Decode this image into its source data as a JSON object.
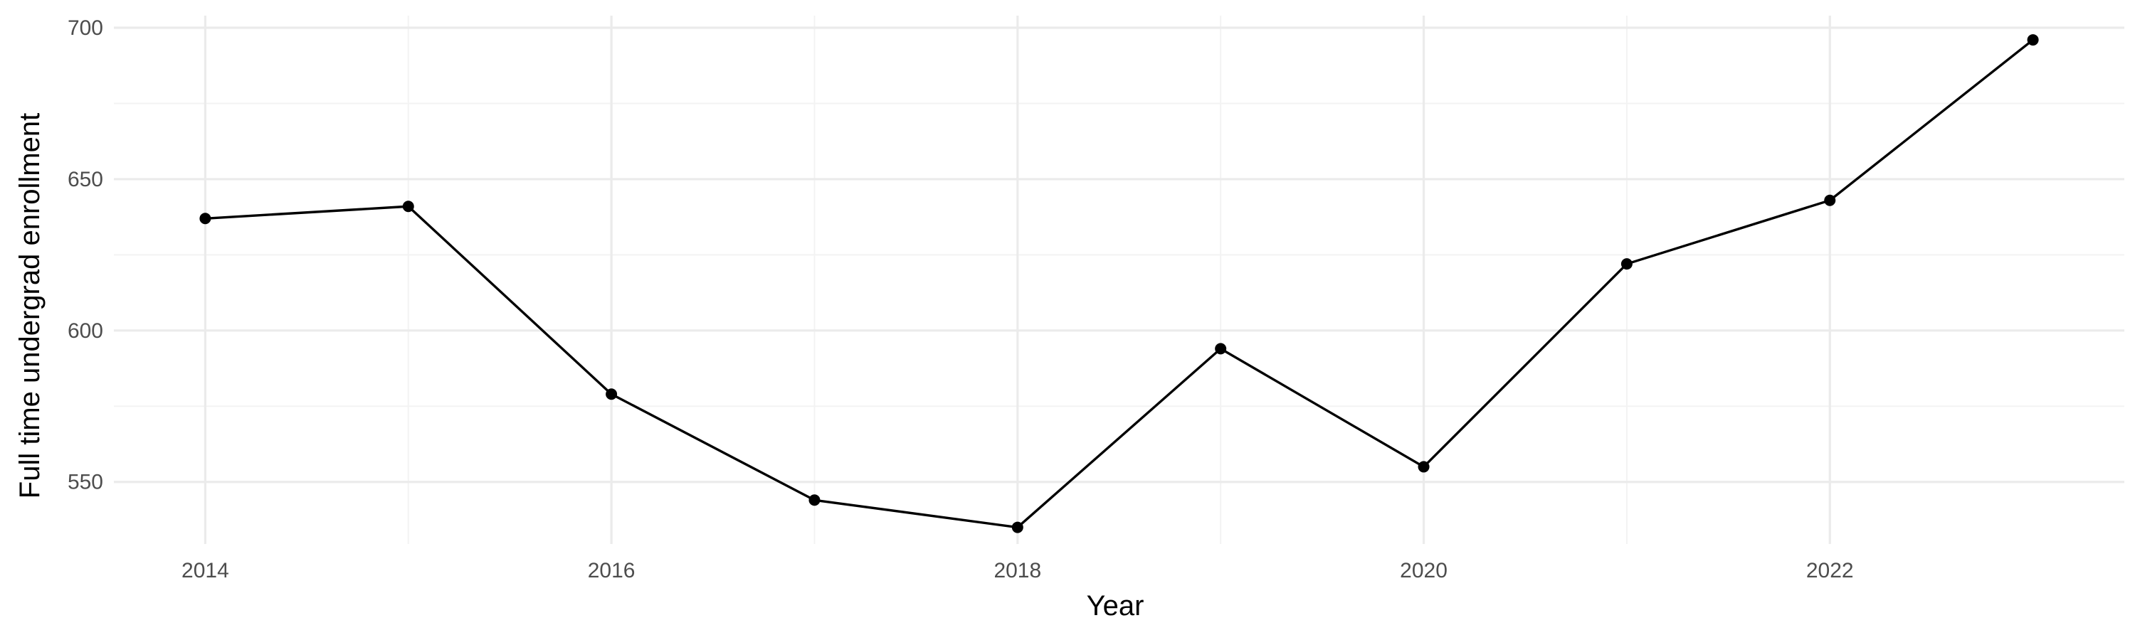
{
  "chart_data": {
    "type": "line",
    "title": "",
    "xlabel": "Year",
    "ylabel": "Full time undergrad enrollment",
    "x": [
      2014,
      2015,
      2016,
      2017,
      2018,
      2019,
      2020,
      2021,
      2022,
      2023
    ],
    "series": [
      {
        "values": [
          637,
          641,
          579,
          544,
          535,
          594,
          555,
          622,
          643,
          696
        ],
        "color": "#000000"
      }
    ],
    "xlim": [
      2013.55,
      2023.45
    ],
    "ylim": [
      529.5,
      704
    ],
    "x_ticks": [
      2014,
      2016,
      2018,
      2020,
      2022
    ],
    "y_ticks": [
      550,
      600,
      650,
      700
    ],
    "grid": true,
    "legend": "none"
  }
}
